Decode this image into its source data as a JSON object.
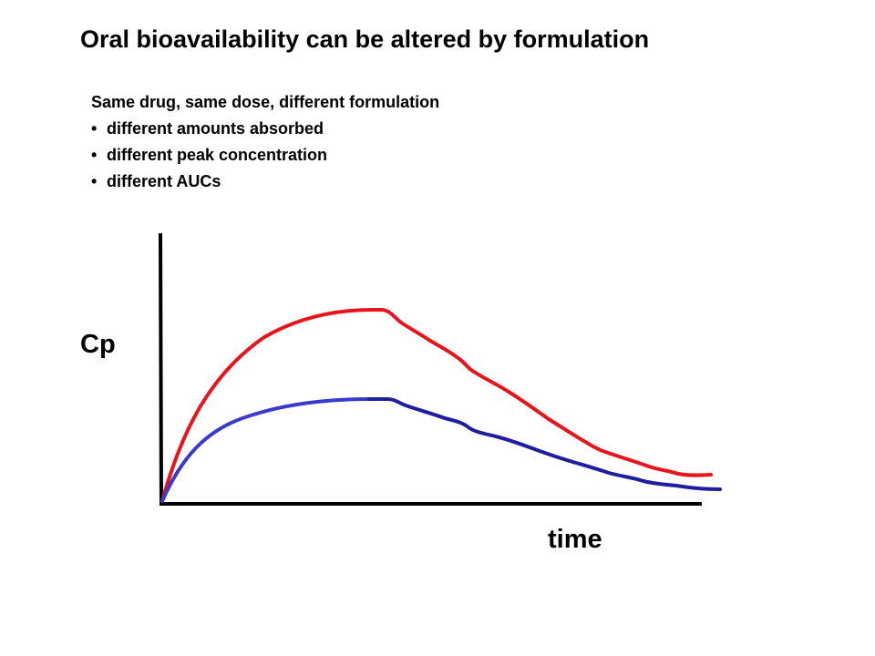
{
  "title": "Oral bioavailability can be altered by formulation",
  "notes": {
    "heading": "Same drug, same dose, different formulation",
    "bullets": [
      "different amounts absorbed",
      "different peak concentration",
      "different AUCs"
    ]
  },
  "axes": {
    "y_label": "Cp",
    "x_label": "time"
  },
  "curves": [
    {
      "color": "#e8141b",
      "relative_peak": 1.0
    },
    {
      "color": "#1e1e9e",
      "relative_peak": 0.54
    }
  ],
  "colors": {
    "axis": "#000000",
    "curve_rise_blue": "#3a3acc"
  }
}
